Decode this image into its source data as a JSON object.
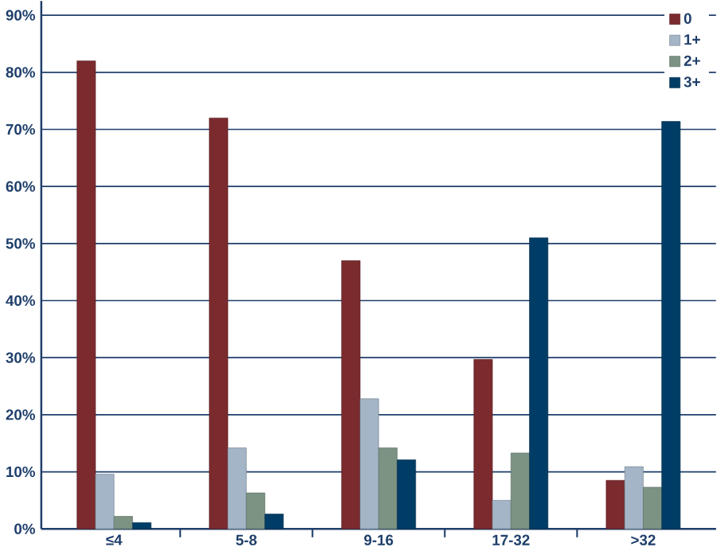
{
  "chart_data": {
    "type": "bar",
    "categories": [
      "≤4",
      "5-8",
      "9-16",
      "17-32",
      ">32"
    ],
    "series": [
      {
        "name": "0",
        "color": "#7b2a2e",
        "values": [
          82,
          72,
          47,
          29.7,
          8.5
        ]
      },
      {
        "name": "1+",
        "color": "#a3b5c6",
        "values": [
          9.6,
          14.2,
          22.8,
          5,
          10.9
        ]
      },
      {
        "name": "2+",
        "color": "#7c9384",
        "values": [
          2.2,
          6.3,
          14.2,
          13.3,
          7.3
        ]
      },
      {
        "name": "3+",
        "color": "#003d66",
        "values": [
          1.1,
          2.6,
          12.1,
          51,
          71.4
        ]
      }
    ],
    "ylim": [
      0,
      92.5
    ],
    "yticks": [
      {
        "value": 0,
        "label": "0%"
      },
      {
        "value": 10,
        "label": "10%"
      },
      {
        "value": 20,
        "label": "20%"
      },
      {
        "value": 30,
        "label": "30%"
      },
      {
        "value": 40,
        "label": "40%"
      },
      {
        "value": 50,
        "label": "50%"
      },
      {
        "value": 60,
        "label": "60%"
      },
      {
        "value": 70,
        "label": "70%"
      },
      {
        "value": 80,
        "label": "80%"
      },
      {
        "value": 90,
        "label": "90%"
      }
    ],
    "grid": "y",
    "legend": "top right"
  }
}
